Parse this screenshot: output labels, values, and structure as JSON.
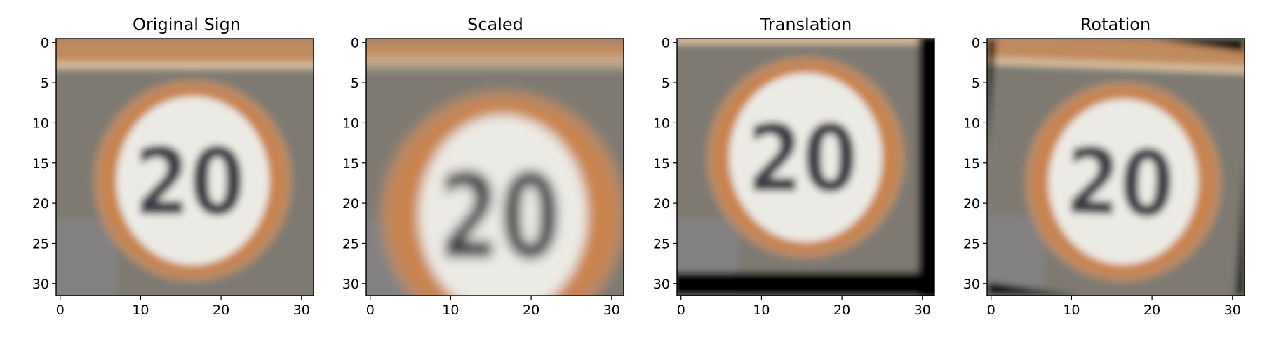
{
  "panels": [
    {
      "id": "original",
      "title": "Original Sign",
      "variant": "original"
    },
    {
      "id": "scaled",
      "title": "Scaled",
      "variant": "scaled"
    },
    {
      "id": "translation",
      "title": "Translation",
      "variant": "translation"
    },
    {
      "id": "rotation",
      "title": "Rotation",
      "variant": "rotation"
    }
  ],
  "sign_text": "20",
  "axes": {
    "xticks": [
      "0",
      "10",
      "20",
      "30"
    ],
    "yticks": [
      "0",
      "5",
      "10",
      "15",
      "20",
      "25",
      "30"
    ],
    "xlim": [
      -0.5,
      31.5
    ],
    "ylim": [
      -0.5,
      31.5
    ],
    "y_inverted": true
  },
  "colors": {
    "background": "#7e7a72",
    "top_bar": "#c08a5f",
    "top_bar_stripe": "#e0c7a6",
    "ring": "#c9834d",
    "ring_edge": "#b98a66",
    "sign_face": "#eceae4",
    "digits": "#3a3d45",
    "black_fill": "#000000"
  }
}
